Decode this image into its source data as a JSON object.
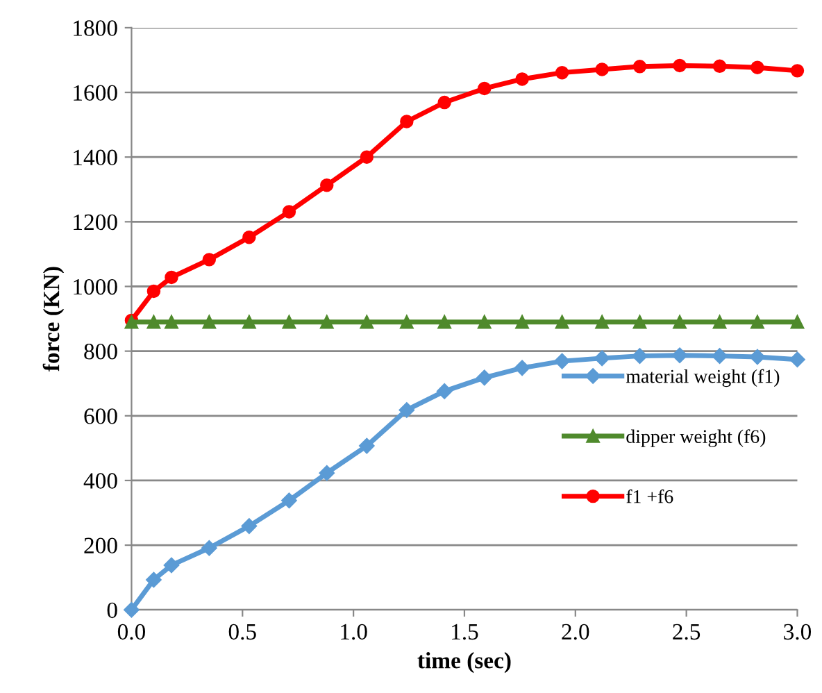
{
  "chart_data": {
    "type": "line",
    "xlabel": "time (sec)",
    "ylabel": "force (KN)",
    "x": [
      0,
      0.1,
      0.18,
      0.35,
      0.53,
      0.71,
      0.88,
      1.06,
      1.24,
      1.41,
      1.59,
      1.76,
      1.94,
      2.12,
      2.29,
      2.47,
      2.65,
      2.82,
      3.0
    ],
    "series": [
      {
        "name": "material weight (f1)",
        "color": "#5b9bd5",
        "marker": "diamond",
        "values": [
          0,
          93,
          138,
          191,
          259,
          338,
          423,
          507,
          618,
          676,
          718,
          748,
          769,
          778,
          785,
          787,
          785,
          782,
          774
        ]
      },
      {
        "name": "dipper weight (f6)",
        "color": "#4f8a2c",
        "marker": "triangle",
        "values": [
          890,
          890,
          890,
          890,
          890,
          890,
          890,
          890,
          890,
          890,
          890,
          890,
          890,
          890,
          890,
          890,
          890,
          890,
          890
        ]
      },
      {
        "name": "f1 +f6",
        "color": "#ff0000",
        "marker": "circle",
        "values": [
          895,
          985,
          1028,
          1083,
          1152,
          1231,
          1313,
          1400,
          1510,
          1569,
          1612,
          1641,
          1661,
          1671,
          1680,
          1683,
          1681,
          1677,
          1667
        ]
      }
    ],
    "xlim": [
      0,
      3.0
    ],
    "xticks": [
      {
        "value": 0,
        "label": "0.0"
      },
      0.5,
      {
        "value": 1,
        "label": "1.0"
      },
      1.5,
      {
        "value": 2,
        "label": "2.0"
      },
      2.5,
      {
        "value": 3,
        "label": "3.0"
      }
    ],
    "ylim": [
      0,
      1800
    ],
    "yticks": [
      0,
      200,
      400,
      600,
      800,
      1000,
      1200,
      1400,
      1600,
      1800
    ],
    "grid": "y",
    "legend": "right",
    "line_style": "solid"
  }
}
